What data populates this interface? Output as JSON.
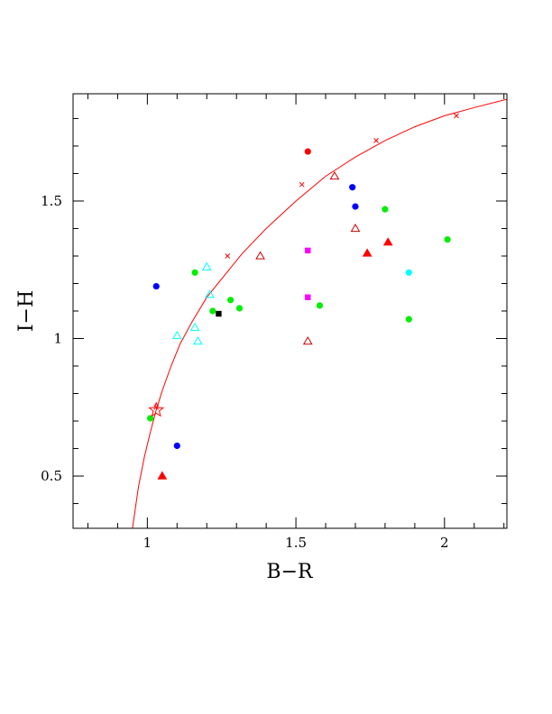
{
  "chart_data": {
    "type": "scatter",
    "xlabel": "B−R",
    "ylabel": "I−H",
    "xlim": [
      0.75,
      2.21
    ],
    "ylim": [
      0.31,
      1.89
    ],
    "x_ticks": [
      {
        "value": 1,
        "label": "1"
      },
      {
        "value": 1.5,
        "label": "1.5"
      },
      {
        "value": 2,
        "label": "2"
      }
    ],
    "y_ticks": [
      {
        "value": 0.5,
        "label": "0.5"
      },
      {
        "value": 1,
        "label": "1"
      },
      {
        "value": 1.5,
        "label": "1.5"
      }
    ],
    "x_minor_step": 0.1,
    "y_minor_step": 0.1,
    "grid": false,
    "curve": {
      "color": "#ff0000",
      "x": [
        0.95,
        0.97,
        0.99,
        1.01,
        1.03,
        1.05,
        1.08,
        1.11,
        1.15,
        1.2,
        1.26,
        1.32,
        1.4,
        1.5,
        1.6,
        1.7,
        1.8,
        1.9,
        2.0,
        2.1,
        2.21
      ],
      "y": [
        0.31,
        0.46,
        0.57,
        0.66,
        0.74,
        0.81,
        0.9,
        0.98,
        1.06,
        1.15,
        1.23,
        1.31,
        1.4,
        1.5,
        1.59,
        1.66,
        1.72,
        1.77,
        1.81,
        1.84,
        1.87
      ],
      "cross_markers_x": [
        1.03,
        1.27,
        1.52,
        1.77,
        2.04
      ],
      "cross_markers_y": [
        0.75,
        1.3,
        1.56,
        1.72,
        1.81
      ]
    },
    "series": [
      {
        "marker": "circle",
        "color": "#ff0000",
        "points": [
          [
            1.54,
            1.68
          ]
        ]
      },
      {
        "marker": "circle",
        "color": "#0000ff",
        "points": [
          [
            1.03,
            1.19
          ],
          [
            1.1,
            0.61
          ],
          [
            1.69,
            1.55
          ],
          [
            1.7,
            1.48
          ]
        ]
      },
      {
        "marker": "circle",
        "color": "#00ee00",
        "points": [
          [
            1.16,
            1.24
          ],
          [
            1.22,
            1.1
          ],
          [
            1.28,
            1.14
          ],
          [
            1.31,
            1.11
          ],
          [
            1.58,
            1.12
          ],
          [
            1.8,
            1.47
          ],
          [
            1.88,
            1.07
          ],
          [
            2.01,
            1.36
          ],
          [
            1.01,
            0.71
          ]
        ]
      },
      {
        "marker": "circle",
        "color": "#00ffff",
        "points": [
          [
            1.88,
            1.24
          ]
        ]
      },
      {
        "marker": "triangle-open",
        "color": "#00ffff",
        "points": [
          [
            1.1,
            1.01
          ],
          [
            1.16,
            1.04
          ],
          [
            1.17,
            0.99
          ],
          [
            1.2,
            1.26
          ],
          [
            1.21,
            1.16
          ]
        ]
      },
      {
        "marker": "triangle-open",
        "color": "#cc0000",
        "points": [
          [
            1.38,
            1.3
          ],
          [
            1.54,
            0.99
          ],
          [
            1.63,
            1.59
          ],
          [
            1.7,
            1.4
          ]
        ]
      },
      {
        "marker": "triangle-filled",
        "color": "#ff0000",
        "points": [
          [
            1.05,
            0.5
          ],
          [
            1.74,
            1.31
          ],
          [
            1.81,
            1.35
          ]
        ]
      },
      {
        "marker": "square",
        "color": "#ff00ff",
        "points": [
          [
            1.54,
            1.32
          ],
          [
            1.54,
            1.15
          ]
        ]
      },
      {
        "marker": "square",
        "color": "#000000",
        "points": [
          [
            1.24,
            1.09
          ]
        ]
      },
      {
        "marker": "star-open",
        "color": "#ff0000",
        "points": [
          [
            1.03,
            0.74
          ]
        ]
      }
    ]
  }
}
